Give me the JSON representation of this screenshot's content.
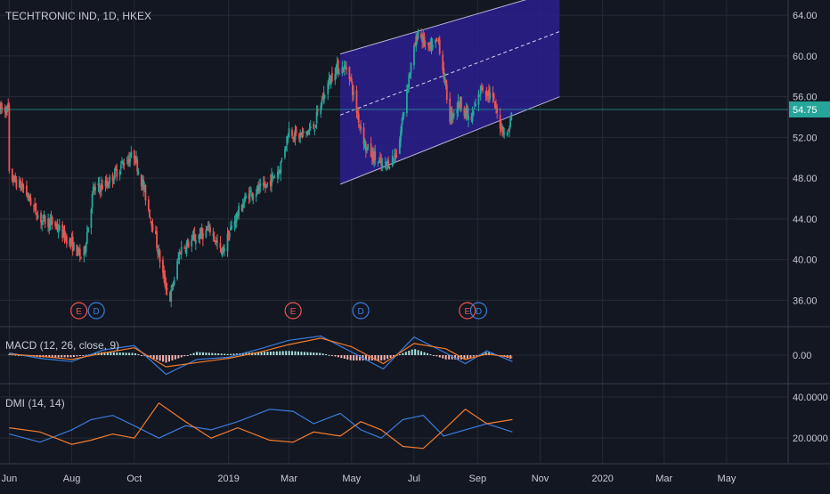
{
  "header": {
    "symbol_title": "TECHTRONIC IND, 1D, HKEX"
  },
  "colors": {
    "background": "#131722",
    "grid": "#262a35",
    "text": "#c8cad1",
    "up": "#26a69a",
    "down": "#ef5350",
    "channel_fill": "#2b1f8f",
    "macd_line": "#3b7ddd",
    "signal_line": "#f57c2b",
    "di_plus": "#3b7ddd",
    "di_minus": "#f57c2b",
    "price_line": "#26a69a",
    "earnings": "#ef5350",
    "dividend": "#3b7ddd"
  },
  "chart_data": [
    {
      "type": "candlestick",
      "title": "TECHTRONIC IND, 1D, HKEX",
      "x_tick_labels": [
        "Jun",
        "Aug",
        "Oct",
        "2019",
        "Mar",
        "May",
        "Jul",
        "Sep",
        "Nov",
        "2020",
        "Mar",
        "May"
      ],
      "x_range": [
        "2018-05-23",
        "2020-06-30"
      ],
      "y_range": [
        33.5,
        65.5
      ],
      "y_tick_labels": [
        "36.00",
        "40.00",
        "44.00",
        "48.00",
        "52.00",
        "56.00",
        "60.00",
        "64.00"
      ],
      "last_price": "54.75",
      "channel": {
        "start_date": "2019-04-20",
        "end_date": "2019-11-20",
        "upper": [
          60.2,
          66.5
        ],
        "middle": [
          54.2,
          62.4
        ],
        "lower": [
          47.4,
          56.0
        ]
      },
      "price_path": [
        [
          "2018-06-01",
          48.2
        ],
        [
          "2018-06-15",
          47.0
        ],
        [
          "2018-07-01",
          44.0
        ],
        [
          "2018-07-15",
          43.5
        ],
        [
          "2018-08-01",
          41.5
        ],
        [
          "2018-08-12",
          40.0
        ],
        [
          "2018-08-22",
          46.8
        ],
        [
          "2018-09-05",
          47.5
        ],
        [
          "2018-09-20",
          49.5
        ],
        [
          "2018-10-01",
          50.3
        ],
        [
          "2018-10-10",
          47.0
        ],
        [
          "2018-10-20",
          43.0
        ],
        [
          "2018-10-30",
          38.0
        ],
        [
          "2018-11-05",
          36.2
        ],
        [
          "2018-11-15",
          41.0
        ],
        [
          "2018-12-01",
          42.2
        ],
        [
          "2018-12-15",
          43.0
        ],
        [
          "2018-12-25",
          40.5
        ],
        [
          "2019-01-05",
          43.5
        ],
        [
          "2019-01-20",
          46.5
        ],
        [
          "2019-02-05",
          47.0
        ],
        [
          "2019-02-20",
          49.0
        ],
        [
          "2019-03-01",
          52.8
        ],
        [
          "2019-03-10",
          52.0
        ],
        [
          "2019-03-25",
          53.0
        ],
        [
          "2019-04-05",
          56.5
        ],
        [
          "2019-04-15",
          58.8
        ],
        [
          "2019-04-28",
          58.8
        ],
        [
          "2019-05-05",
          55.0
        ],
        [
          "2019-05-15",
          51.0
        ],
        [
          "2019-06-01",
          49.0
        ],
        [
          "2019-06-15",
          50.5
        ],
        [
          "2019-06-25",
          57.5
        ],
        [
          "2019-07-05",
          62.5
        ],
        [
          "2019-07-15",
          60.5
        ],
        [
          "2019-07-25",
          61.5
        ],
        [
          "2019-08-05",
          54.0
        ],
        [
          "2019-08-15",
          55.5
        ],
        [
          "2019-08-25",
          53.5
        ],
        [
          "2019-09-05",
          57.0
        ],
        [
          "2019-09-15",
          56.0
        ],
        [
          "2019-09-22",
          53.5
        ],
        [
          "2019-09-30",
          52.2
        ],
        [
          "2019-10-05",
          54.75
        ]
      ],
      "events": [
        {
          "date": "2018-08-08",
          "label": "E"
        },
        {
          "date": "2018-08-25",
          "label": "D"
        },
        {
          "date": "2019-03-05",
          "label": "E"
        },
        {
          "date": "2019-05-10",
          "label": "D"
        },
        {
          "date": "2019-08-22",
          "label": "E"
        },
        {
          "date": "2019-09-02",
          "label": "D"
        }
      ]
    },
    {
      "type": "line",
      "title": "MACD (12, 26, close, 9)",
      "y_tick_labels": [
        "0.00"
      ],
      "y_range": [
        -2.6,
        2.6
      ],
      "series": [
        {
          "values": [
            [
              "2018-06-01",
              0.2
            ],
            [
              "2018-07-01",
              -0.3
            ],
            [
              "2018-08-01",
              -0.6
            ],
            [
              "2018-09-01",
              0.5
            ],
            [
              "2018-10-01",
              0.9
            ],
            [
              "2018-11-01",
              -1.8
            ],
            [
              "2018-12-01",
              -0.4
            ],
            [
              "2019-01-01",
              -0.2
            ],
            [
              "2019-02-01",
              0.6
            ],
            [
              "2019-03-01",
              1.4
            ],
            [
              "2019-04-01",
              1.8
            ],
            [
              "2019-05-01",
              0.3
            ],
            [
              "2019-06-01",
              -1.3
            ],
            [
              "2019-07-01",
              1.7
            ],
            [
              "2019-08-01",
              0.2
            ],
            [
              "2019-08-20",
              -0.8
            ],
            [
              "2019-09-10",
              0.4
            ],
            [
              "2019-10-05",
              -0.6
            ]
          ]
        },
        {
          "values": [
            [
              "2018-06-01",
              0.1
            ],
            [
              "2018-07-01",
              -0.1
            ],
            [
              "2018-08-01",
              -0.4
            ],
            [
              "2018-09-01",
              0.2
            ],
            [
              "2018-10-01",
              0.7
            ],
            [
              "2018-11-01",
              -1.1
            ],
            [
              "2018-12-01",
              -0.7
            ],
            [
              "2019-01-01",
              -0.3
            ],
            [
              "2019-02-01",
              0.3
            ],
            [
              "2019-03-01",
              1.0
            ],
            [
              "2019-04-01",
              1.6
            ],
            [
              "2019-05-01",
              0.8
            ],
            [
              "2019-06-01",
              -0.8
            ],
            [
              "2019-07-01",
              1.1
            ],
            [
              "2019-08-01",
              0.6
            ],
            [
              "2019-08-20",
              -0.4
            ],
            [
              "2019-09-10",
              0.1
            ],
            [
              "2019-10-05",
              -0.2
            ]
          ]
        }
      ]
    },
    {
      "type": "line",
      "title": "DMI (14, 14)",
      "y_tick_labels": [
        "20.0000",
        "40.0000"
      ],
      "y_range": [
        8,
        46
      ],
      "series": [
        {
          "values": [
            [
              "2018-06-01",
              22
            ],
            [
              "2018-07-01",
              18
            ],
            [
              "2018-08-01",
              24
            ],
            [
              "2018-08-20",
              29
            ],
            [
              "2018-09-10",
              31
            ],
            [
              "2018-10-01",
              26
            ],
            [
              "2018-10-25",
              20
            ],
            [
              "2018-11-20",
              26
            ],
            [
              "2018-12-15",
              24
            ],
            [
              "2019-01-10",
              28
            ],
            [
              "2019-02-10",
              34
            ],
            [
              "2019-03-05",
              33
            ],
            [
              "2019-03-25",
              27
            ],
            [
              "2019-04-20",
              32
            ],
            [
              "2019-05-10",
              24
            ],
            [
              "2019-05-30",
              20
            ],
            [
              "2019-06-20",
              29
            ],
            [
              "2019-07-10",
              31
            ],
            [
              "2019-07-30",
              21
            ],
            [
              "2019-08-20",
              24
            ],
            [
              "2019-09-10",
              27
            ],
            [
              "2019-10-05",
              23
            ]
          ]
        },
        {
          "values": [
            [
              "2018-06-01",
              25
            ],
            [
              "2018-07-01",
              23
            ],
            [
              "2018-08-01",
              17
            ],
            [
              "2018-08-20",
              19
            ],
            [
              "2018-09-10",
              22
            ],
            [
              "2018-10-01",
              20
            ],
            [
              "2018-10-25",
              37
            ],
            [
              "2018-11-20",
              28
            ],
            [
              "2018-12-15",
              20
            ],
            [
              "2019-01-10",
              25
            ],
            [
              "2019-02-10",
              19
            ],
            [
              "2019-03-05",
              18
            ],
            [
              "2019-03-25",
              23
            ],
            [
              "2019-04-20",
              21
            ],
            [
              "2019-05-10",
              28
            ],
            [
              "2019-05-30",
              24
            ],
            [
              "2019-06-20",
              16
            ],
            [
              "2019-07-10",
              15
            ],
            [
              "2019-07-30",
              24
            ],
            [
              "2019-08-20",
              34
            ],
            [
              "2019-09-10",
              27
            ],
            [
              "2019-10-05",
              29
            ]
          ]
        }
      ]
    }
  ]
}
